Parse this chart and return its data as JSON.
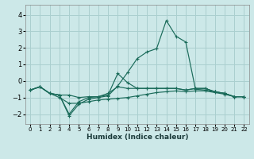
{
  "xlabel": "Humidex (Indice chaleur)",
  "bg_color": "#cce8e8",
  "grid_color": "#aacfcf",
  "line_color": "#1a6b5a",
  "xlim": [
    -0.5,
    22.5
  ],
  "ylim": [
    -2.6,
    4.6
  ],
  "xticks": [
    0,
    1,
    2,
    3,
    4,
    5,
    6,
    7,
    8,
    9,
    10,
    11,
    12,
    13,
    14,
    15,
    16,
    17,
    18,
    19,
    20,
    21,
    22
  ],
  "yticks": [
    -2,
    -1,
    0,
    1,
    2,
    3,
    4
  ],
  "line1_x": [
    0,
    1,
    2,
    3,
    4,
    5,
    6,
    7,
    8,
    9,
    10,
    11,
    12,
    13,
    14,
    15,
    16,
    17,
    18,
    19,
    20,
    21,
    22
  ],
  "line1_y": [
    -0.55,
    -0.35,
    -0.75,
    -0.85,
    -0.85,
    -1.0,
    -0.95,
    -0.95,
    -0.75,
    -0.35,
    -0.45,
    -0.45,
    -0.45,
    -0.45,
    -0.45,
    -0.45,
    -0.55,
    -0.45,
    -0.45,
    -0.65,
    -0.75,
    -0.95,
    -0.95
  ],
  "line2_x": [
    0,
    1,
    2,
    3,
    4,
    5,
    6,
    7,
    8,
    9,
    10,
    11,
    12,
    13,
    14,
    15,
    16,
    17,
    18,
    19,
    20,
    21,
    22
  ],
  "line2_y": [
    -0.55,
    -0.35,
    -0.75,
    -0.85,
    -2.1,
    -1.4,
    -1.1,
    -1.0,
    -0.9,
    -0.3,
    0.5,
    1.35,
    1.75,
    1.95,
    3.65,
    2.7,
    2.35,
    -0.5,
    -0.55,
    -0.65,
    -0.75,
    -0.95,
    -0.95
  ],
  "line3_x": [
    0,
    1,
    2,
    3,
    4,
    5,
    6,
    7,
    8,
    9,
    10,
    11,
    12,
    13,
    14,
    15,
    16,
    17,
    18,
    19,
    20,
    21,
    22
  ],
  "line3_y": [
    -0.55,
    -0.35,
    -0.75,
    -0.85,
    -2.0,
    -1.25,
    -1.0,
    -0.95,
    -0.85,
    0.45,
    -0.1,
    -0.45,
    -0.45,
    -0.45,
    -0.45,
    -0.45,
    -0.55,
    -0.45,
    -0.45,
    -0.65,
    -0.75,
    -0.95,
    -0.95
  ],
  "line4_x": [
    0,
    1,
    2,
    3,
    4,
    5,
    6,
    7,
    8,
    9,
    10,
    11,
    12,
    13,
    14,
    15,
    16,
    17,
    18,
    19,
    20,
    21,
    22
  ],
  "line4_y": [
    -0.55,
    -0.35,
    -0.75,
    -1.0,
    -1.35,
    -1.35,
    -1.25,
    -1.15,
    -1.1,
    -1.05,
    -1.0,
    -0.9,
    -0.8,
    -0.7,
    -0.65,
    -0.6,
    -0.65,
    -0.6,
    -0.6,
    -0.7,
    -0.8,
    -0.95,
    -0.95
  ]
}
